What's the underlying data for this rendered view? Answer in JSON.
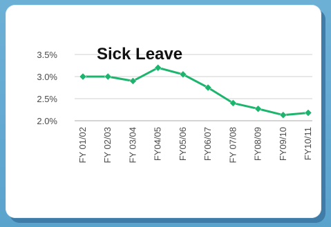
{
  "chart_data": {
    "type": "line",
    "title": "Sick Leave",
    "xlabel": "",
    "ylabel": "",
    "categories": [
      "FY 01/02",
      "FY 02/03",
      "FY 03/04",
      "FY04/05",
      "FY05/06",
      "FY06/07",
      "FY 07/08",
      "FY08/09",
      "FY09/10",
      "FY10/11"
    ],
    "series": [
      {
        "values": [
          3.0,
          3.0,
          2.9,
          3.2,
          3.05,
          2.75,
          2.4,
          2.27,
          2.13,
          2.18
        ],
        "color": "#1db46e"
      }
    ],
    "yticks": [
      "2.0%",
      "2.5%",
      "3.0%",
      "3.5%"
    ],
    "ylim": [
      2.0,
      3.5
    ],
    "grid": true,
    "legend": "none"
  }
}
